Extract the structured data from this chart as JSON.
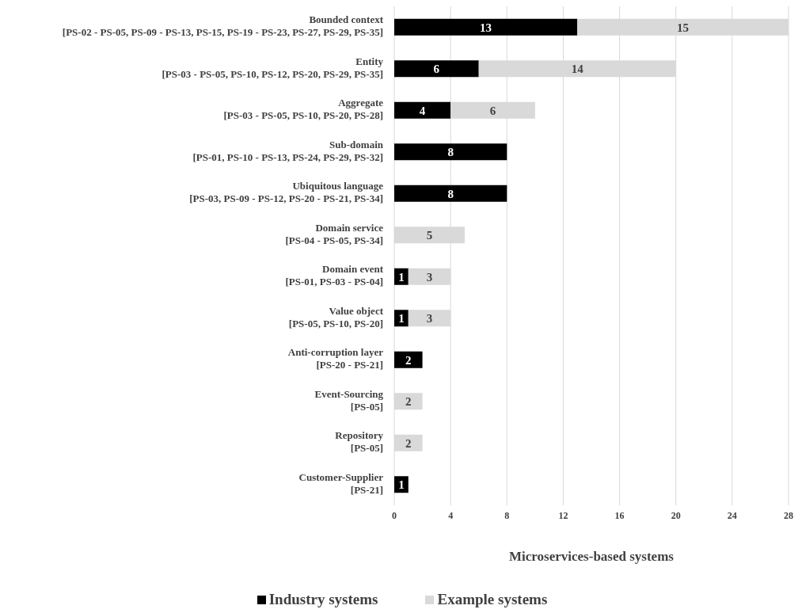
{
  "chart_data": {
    "type": "bar",
    "orientation": "horizontal",
    "stacked": true,
    "categories": [
      "Bounded context\n[PS-02 - PS-05, PS-09 - PS-13, PS-15, PS-19 - PS-23, PS-27, PS-29, PS-35]",
      "Entity\n[PS-03 - PS-05, PS-10, PS-12, PS-20, PS-29, PS-35]",
      "Aggregate\n[PS-03 - PS-05, PS-10, PS-20, PS-28]",
      "Sub-domain\n[PS-01, PS-10 - PS-13, PS-24, PS-29, PS-32]",
      "Ubiquitous language\n[PS-03, PS-09 - PS-12, PS-20 - PS-21, PS-34]",
      "Domain service\n[PS-04 - PS-05, PS-34]",
      "Domain event\n[PS-01, PS-03 - PS-04]",
      "Value object\n[PS-05, PS-10, PS-20]",
      "Anti-corruption layer\n[PS-20 - PS-21]",
      "Event-Sourcing\n[PS-05]",
      "Repository\n[PS-05]",
      "Customer-Supplier\n[PS-21]"
    ],
    "series": [
      {
        "name": "Industry systems",
        "color": "#000000",
        "values": [
          13,
          6,
          4,
          8,
          8,
          null,
          1,
          1,
          2,
          null,
          null,
          1
        ]
      },
      {
        "name": "Example systems",
        "color": "#d9d9d9",
        "values": [
          15,
          14,
          6,
          null,
          null,
          5,
          3,
          3,
          null,
          2,
          2,
          null
        ]
      }
    ],
    "xlim": [
      0,
      28
    ],
    "xticks": [
      0,
      4,
      8,
      12,
      16,
      20,
      24,
      28
    ],
    "xlabel": "Microservices-based systems",
    "grid": "x",
    "legend": "bottom",
    "data_labels": true
  }
}
